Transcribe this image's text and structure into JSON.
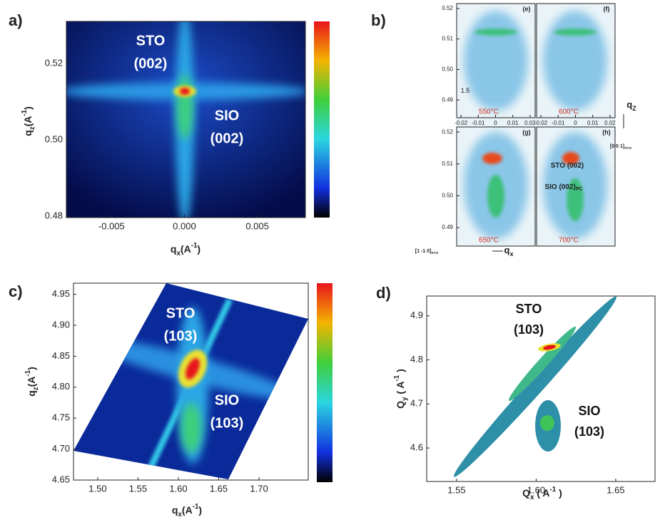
{
  "chart_data": [
    {
      "type": "heatmap",
      "label": "a)",
      "x_label": {
        "text": "q",
        "sub": "x",
        "unit": "(A",
        "sup": "-1",
        "end": ")"
      },
      "y_label": {
        "text": "q",
        "sub": "z",
        "unit": "(A",
        "sup": "-1",
        "end": ")"
      },
      "xlim": [
        -0.0081,
        0.0083
      ],
      "xticks": [
        -0.005,
        {
          "value": 0,
          "label": "0.000"
        },
        0.005
      ],
      "ylim": [
        0.4796,
        0.5311
      ],
      "yticks": [
        0.52,
        {
          "value": 0.5,
          "label": "0.50"
        },
        0.48
      ],
      "annotations": [
        "STO",
        "(002)",
        "SIO",
        "(002)"
      ]
    },
    {
      "type": "contour-grid",
      "label": "b)",
      "xlim": [
        -0.0225,
        0.0229
      ],
      "xticks": [
        -0.02,
        -0.01,
        0,
        0.01,
        0.02
      ],
      "ylim": [
        0.4842,
        0.5216
      ],
      "yticks": [
        0.52,
        0.51,
        {
          "value": 0.5,
          "label": "0.50"
        },
        0.49
      ],
      "subpanels": [
        {
          "label": "(e)",
          "temperature": "550°C"
        },
        {
          "label": "(f)",
          "temperature": "600°C"
        },
        {
          "label": "(g)",
          "temperature": "650°C"
        },
        {
          "label": "(h)",
          "temperature": "700°C"
        }
      ],
      "annotations": [
        {
          "text": "STO (002)"
        },
        {
          "text": "SIO (002)",
          "sub": "PC"
        },
        {
          "text": "1.5"
        },
        {
          "text": "[0 0 1]",
          "sub": "STO"
        },
        {
          "text": "[1 -1 0]",
          "sub": "STO"
        },
        {
          "text": "q",
          "sub": "Z"
        },
        {
          "text": "q",
          "sub": "x"
        }
      ]
    },
    {
      "type": "heatmap",
      "label": "c)",
      "x_label": {
        "text": "q",
        "sub": "x",
        "unit": "(A",
        "sup": "-1",
        "end": ")"
      },
      "y_label": {
        "text": "q",
        "sub": "z",
        "unit": "(A",
        "sup": "-1",
        "end": ")"
      },
      "xlim": [
        1.47,
        1.761
      ],
      "xticks": [
        {
          "value": 1.5,
          "label": "1.50"
        },
        1.55,
        {
          "value": 1.6,
          "label": "1.60"
        },
        1.65,
        {
          "value": 1.7,
          "label": "1.70"
        }
      ],
      "ylim": [
        4.65,
        4.968
      ],
      "yticks": [
        4.95,
        {
          "value": 4.9,
          "label": "4.90"
        },
        4.85,
        {
          "value": 4.8,
          "label": "4.80"
        },
        4.75,
        {
          "value": 4.7,
          "label": "4.70"
        },
        4.65
      ],
      "annotations": [
        "STO",
        "(103)",
        "SIO",
        "(103)"
      ]
    },
    {
      "type": "contour",
      "label": "d)",
      "x_label": {
        "text": "Q",
        "sub": "x",
        "unit": " ( A",
        "sup": "-1",
        "end": " )"
      },
      "y_label": {
        "text": "Q",
        "sub": "y",
        "unit": " ( A",
        "sup": "-1",
        "end": " )"
      },
      "xlim": [
        1.5312,
        1.6747
      ],
      "xticks": [
        1.55,
        {
          "value": 1.6,
          "label": "1.60"
        },
        1.65
      ],
      "ylim": [
        4.524,
        4.945
      ],
      "yticks": [
        4.9,
        4.8,
        4.7,
        4.6
      ],
      "annotations": [
        "STO",
        "(103)",
        "SIO",
        "(103)"
      ]
    }
  ]
}
